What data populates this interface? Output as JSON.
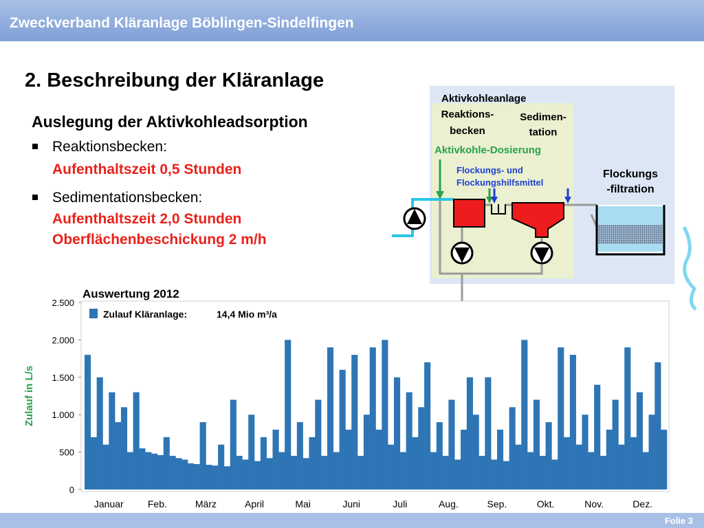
{
  "header": {
    "title": "Zweckverband Kläranlage Böblingen-Sindelfingen"
  },
  "slide": {
    "title": "2. Beschreibung der Kläranlage",
    "subtitle": "Auslegung der Aktivkohleadsorption",
    "bullets": [
      {
        "label": "Reaktionsbecken:",
        "lines": [
          "Aufenthaltszeit 0,5 Stunden"
        ]
      },
      {
        "label": "Sedimentationsbecken:",
        "lines": [
          "Aufenthaltszeit 2,0 Stunden",
          "Oberflächenbeschickung 2 m/h"
        ]
      }
    ],
    "footer": "Folie 3"
  },
  "diagram": {
    "plant": "Aktivkohleanlage",
    "reaction": [
      "Reaktions-",
      "becken"
    ],
    "sedimentation": [
      "Sedimen-",
      "tation"
    ],
    "dosing": "Aktivkohle-Dosierung",
    "flocculants": [
      "Flockungs- und",
      "Flockungshilfsmittel"
    ],
    "filtration": [
      "Flockungs",
      "-filtration"
    ]
  },
  "chart_data": {
    "type": "bar",
    "title": "Auswertung 2012",
    "y_label": "Zulauf in L/s",
    "categories": [
      "Januar",
      "Feb.",
      "März",
      "April",
      "Mai",
      "Juni",
      "Juli",
      "Aug.",
      "Sep.",
      "Okt.",
      "Nov.",
      "Dez."
    ],
    "series": [
      {
        "name": "Zulauf Kläranlage:",
        "color": "#2e75b6",
        "values": [
          [
            1800,
            700,
            1500,
            600,
            1300,
            900,
            1100,
            500
          ],
          [
            1300,
            550,
            500,
            480,
            460,
            700,
            450,
            420
          ],
          [
            400,
            350,
            340,
            900,
            330,
            320,
            600,
            310
          ],
          [
            1200,
            450,
            400,
            1000,
            380,
            700,
            420,
            800
          ],
          [
            500,
            2000,
            450,
            900,
            420,
            700,
            1200,
            450
          ],
          [
            1900,
            500,
            1600,
            800,
            1800,
            450,
            1000,
            1900
          ],
          [
            800,
            2000,
            600,
            1500,
            500,
            1300,
            700,
            1100
          ],
          [
            1700,
            500,
            900,
            450,
            1200,
            400,
            800,
            1500
          ],
          [
            1000,
            450,
            1500,
            400,
            800,
            380,
            1100,
            600
          ],
          [
            2000,
            500,
            1200,
            450,
            900,
            400,
            1900,
            700
          ],
          [
            1800,
            600,
            1000,
            500,
            1400,
            450,
            800,
            1200
          ],
          [
            600,
            1900,
            700,
            1300,
            500,
            1000,
            1700,
            800
          ]
        ]
      }
    ],
    "annotation": "14,4 Mio m³/a",
    "ylim": [
      0,
      2500
    ],
    "yticks": [
      0,
      500,
      {
        "value": 1000,
        "label": "1.000"
      },
      {
        "value": 1500,
        "label": "1.500"
      },
      {
        "value": 2000,
        "label": "2.000"
      },
      {
        "value": 2500,
        "label": "2.500"
      }
    ]
  }
}
